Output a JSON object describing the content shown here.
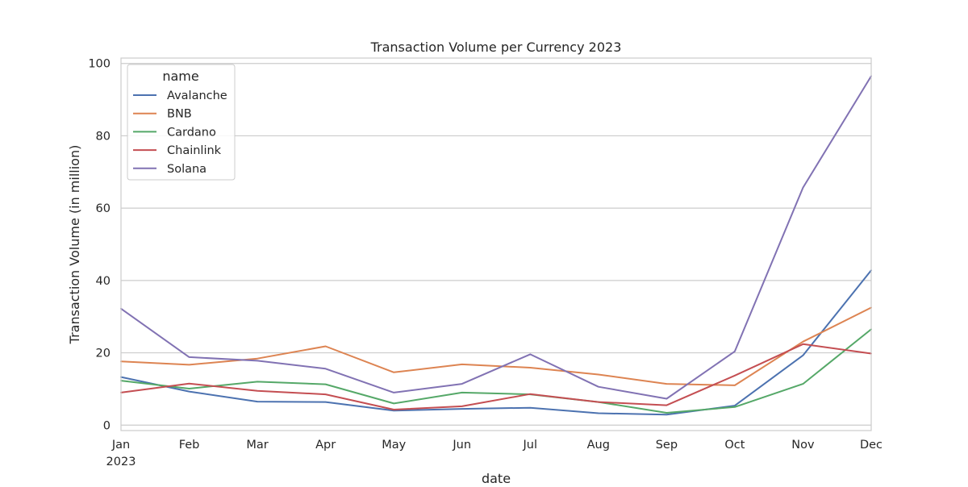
{
  "chart_data": {
    "type": "line",
    "title": "Transaction Volume per Currency 2023",
    "xlabel": "date",
    "ylabel": "Transaction Volume (in million)",
    "categories": [
      "Jan",
      "Feb",
      "Mar",
      "Apr",
      "May",
      "Jun",
      "Jul",
      "Aug",
      "Sep",
      "Oct",
      "Nov",
      "Dec"
    ],
    "first_tick_sublabel": "2023",
    "ylim": [
      -1.5,
      101.5
    ],
    "yticks": [
      0,
      20,
      40,
      60,
      80,
      100
    ],
    "grid": true,
    "legend": {
      "title": "name",
      "placement": "top-left"
    },
    "series": [
      {
        "name": "Avalanche",
        "color": "#4c72b0",
        "values": [
          13.3,
          9.3,
          6.5,
          6.4,
          4.0,
          4.5,
          4.8,
          3.3,
          2.9,
          5.4,
          19.3,
          42.8
        ]
      },
      {
        "name": "BNB",
        "color": "#dd8452",
        "values": [
          17.6,
          16.7,
          18.4,
          21.8,
          14.6,
          16.8,
          15.9,
          14.0,
          11.4,
          11.0,
          23.1,
          32.5
        ]
      },
      {
        "name": "Cardano",
        "color": "#55a868",
        "values": [
          12.3,
          10.1,
          12.0,
          11.3,
          6.0,
          9.0,
          8.5,
          6.4,
          3.4,
          5.0,
          11.4,
          26.5
        ]
      },
      {
        "name": "Chainlink",
        "color": "#c44e52",
        "values": [
          9.0,
          11.5,
          9.5,
          8.5,
          4.3,
          5.2,
          8.6,
          6.4,
          5.5,
          13.7,
          22.4,
          19.8
        ]
      },
      {
        "name": "Solana",
        "color": "#8172b3",
        "values": [
          32.2,
          18.8,
          17.8,
          15.6,
          9.0,
          11.4,
          19.6,
          10.6,
          7.3,
          20.4,
          65.7,
          96.5
        ]
      }
    ]
  }
}
